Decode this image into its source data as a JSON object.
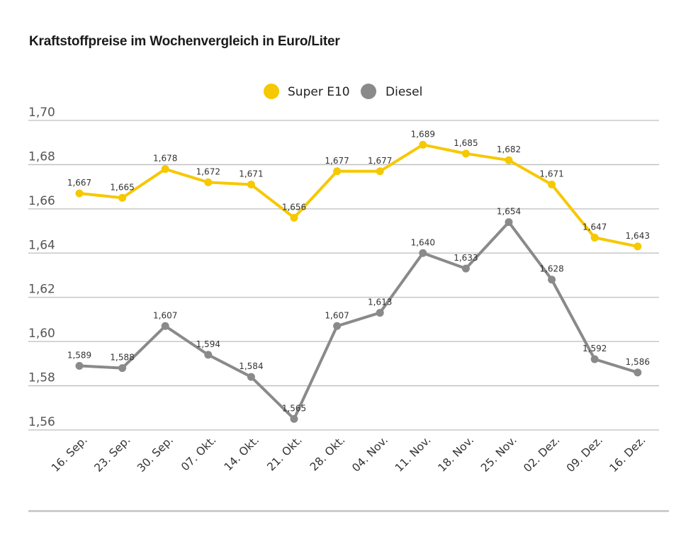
{
  "title": "Kraftstoffpreise im Wochenvergleich in Euro/Liter",
  "colors": {
    "super": "#f6c800",
    "diesel": "#8a8a8a",
    "grid": "#bdbdbd"
  },
  "chart_data": {
    "type": "line",
    "title": "Kraftstoffpreise im Wochenvergleich in Euro/Liter",
    "xlabel": "",
    "ylabel": "",
    "ylim": [
      1.56,
      1.7
    ],
    "yticks": [
      "1,70",
      "1,68",
      "1,66",
      "1,64",
      "1,62",
      "1,60",
      "1,58",
      "1,56"
    ],
    "ytick_values": [
      1.7,
      1.68,
      1.66,
      1.64,
      1.62,
      1.6,
      1.58,
      1.56
    ],
    "categories": [
      "16. Sep.",
      "23. Sep.",
      "30. Sep.",
      "07. Okt.",
      "14. Okt.",
      "21. Okt.",
      "28. Okt.",
      "04. Nov.",
      "11. Nov.",
      "18. Nov.",
      "25. Nov.",
      "02. Dez.",
      "09. Dez.",
      "16. Dez."
    ],
    "legend_position": "top-center",
    "series": [
      {
        "name": "Super E10",
        "color_key": "super",
        "values": [
          1.667,
          1.665,
          1.678,
          1.672,
          1.671,
          1.656,
          1.677,
          1.677,
          1.689,
          1.685,
          1.682,
          1.671,
          1.647,
          1.643
        ],
        "labels": [
          "1,667",
          "1,665",
          "1,678",
          "1,672",
          "1,671",
          "1,656",
          "1,677",
          "1,677",
          "1,689",
          "1,685",
          "1,682",
          "1,671",
          "1,647",
          "1,643"
        ]
      },
      {
        "name": "Diesel",
        "color_key": "diesel",
        "values": [
          1.589,
          1.588,
          1.607,
          1.594,
          1.584,
          1.565,
          1.607,
          1.613,
          1.64,
          1.633,
          1.654,
          1.628,
          1.592,
          1.586
        ],
        "labels": [
          "1,589",
          "1,588",
          "1,607",
          "1,594",
          "1,584",
          "1,565",
          "1,607",
          "1,613",
          "1,640",
          "1,633",
          "1,654",
          "1,628",
          "1,592",
          "1,586"
        ]
      }
    ]
  }
}
